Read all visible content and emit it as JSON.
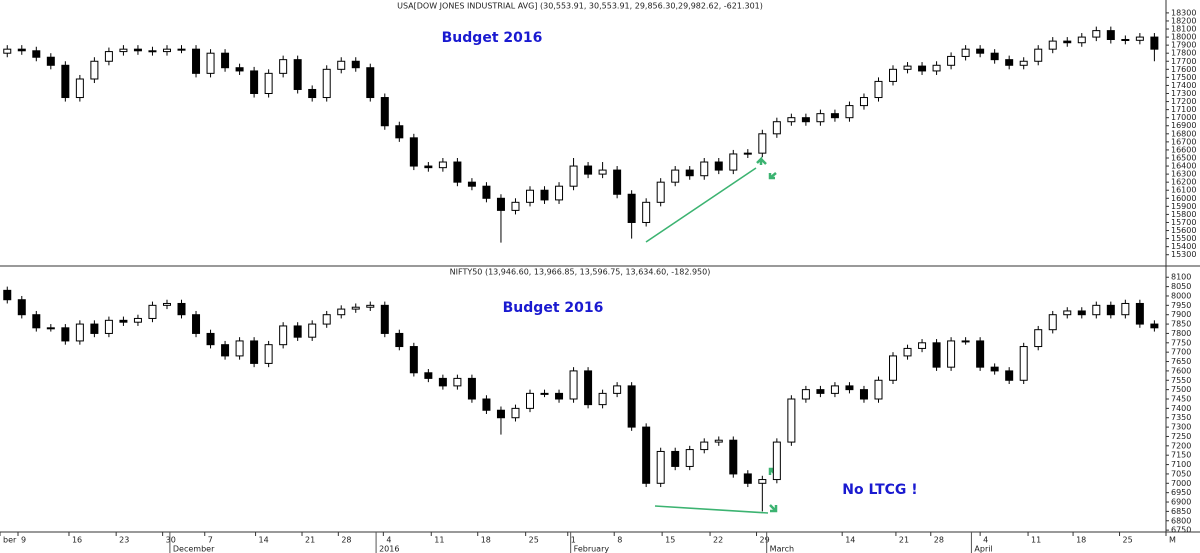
{
  "chart_data": [
    {
      "type": "candlestick",
      "title": "USA[DOW JONES INDUSTRIAL AVG] (30,553.91, 30,553.91, 29,856.30,29,982.62, -621.301)",
      "annotations": [
        "Budget 2016"
      ],
      "up_color": "#ffffff",
      "down_color": "#000000",
      "edge_color": "#000000",
      "xlim": [
        -0.5,
        79.8
      ],
      "ylim": [
        15160,
        18460
      ],
      "yticks": [
        15300,
        15400,
        15500,
        15600,
        15700,
        15800,
        15900,
        16000,
        16100,
        16200,
        16300,
        16400,
        16500,
        16600,
        16700,
        16800,
        16900,
        17000,
        17100,
        17200,
        17300,
        17400,
        17500,
        17600,
        17700,
        17800,
        17900,
        18000,
        18100,
        18200,
        18300
      ],
      "open": [
        17800,
        17850,
        17830,
        17750,
        17650,
        17250,
        17480,
        17700,
        17820,
        17850,
        17830,
        17820,
        17850,
        17850,
        17550,
        17800,
        17620,
        17580,
        17300,
        17550,
        17720,
        17350,
        17250,
        17600,
        17700,
        17620,
        17250,
        16900,
        16750,
        16400,
        16380,
        16450,
        16200,
        16150,
        16000,
        15850,
        15950,
        16100,
        15980,
        16150,
        16400,
        16300,
        16350,
        16050,
        15700,
        15950,
        16200,
        16350,
        16280,
        16450,
        16350,
        16550,
        16560,
        16800,
        16950,
        17000,
        16950,
        17050,
        17000,
        17150,
        17250,
        17450,
        17600,
        17640,
        17580,
        17650,
        17760,
        17850,
        17800,
        17720,
        17650,
        17700,
        17850,
        17950,
        17930,
        18000,
        18080,
        17970,
        17960,
        18000
      ],
      "high": [
        17900,
        17900,
        17880,
        17800,
        17700,
        17530,
        17750,
        17870,
        17900,
        17900,
        17880,
        17900,
        17900,
        17900,
        17850,
        17850,
        17670,
        17630,
        17600,
        17770,
        17770,
        17400,
        17650,
        17750,
        17750,
        17670,
        17300,
        16950,
        16800,
        16450,
        16500,
        16500,
        16250,
        16200,
        16050,
        16000,
        16150,
        16150,
        16200,
        16500,
        16450,
        16450,
        16400,
        16100,
        16000,
        16250,
        16400,
        16400,
        16500,
        16500,
        16600,
        16610,
        16850,
        17000,
        17050,
        17050,
        17100,
        17100,
        17200,
        17300,
        17500,
        17650,
        17690,
        17690,
        17700,
        17810,
        17900,
        17900,
        17850,
        17770,
        17750,
        17900,
        18000,
        18000,
        18050,
        18130,
        18130,
        18020,
        18050,
        18050
      ],
      "low": [
        17750,
        17780,
        17700,
        17600,
        17200,
        17200,
        17430,
        17650,
        17770,
        17780,
        17770,
        17770,
        17800,
        17500,
        17500,
        17570,
        17530,
        17250,
        17250,
        17500,
        17300,
        17200,
        17200,
        17550,
        17570,
        17200,
        16850,
        16700,
        16350,
        16330,
        16330,
        16150,
        16100,
        15950,
        15450,
        15800,
        15900,
        15930,
        15930,
        16100,
        16250,
        16250,
        16000,
        15500,
        15650,
        15900,
        16150,
        16230,
        16230,
        16300,
        16300,
        16500,
        16510,
        16750,
        16900,
        16900,
        16900,
        16950,
        16950,
        17100,
        17200,
        17400,
        17550,
        17530,
        17530,
        17600,
        17710,
        17750,
        17670,
        17600,
        17600,
        17650,
        17800,
        17880,
        17880,
        17950,
        17920,
        17910,
        17910,
        17700
      ],
      "close": [
        17850,
        17830,
        17750,
        17650,
        17250,
        17480,
        17700,
        17820,
        17850,
        17830,
        17820,
        17850,
        17850,
        17550,
        17800,
        17620,
        17580,
        17300,
        17550,
        17720,
        17350,
        17250,
        17600,
        17700,
        17620,
        17250,
        16900,
        16750,
        16400,
        16380,
        16450,
        16200,
        16150,
        16000,
        15850,
        15950,
        16100,
        15980,
        16150,
        16400,
        16300,
        16350,
        16050,
        15700,
        15950,
        16200,
        16350,
        16280,
        16450,
        16350,
        16550,
        16560,
        16800,
        16950,
        17000,
        16950,
        17050,
        17000,
        17150,
        17250,
        17450,
        17600,
        17640,
        17580,
        17650,
        17760,
        17850,
        17800,
        17720,
        17650,
        17700,
        17850,
        17950,
        17930,
        18000,
        18080,
        17970,
        17960,
        18000,
        17850
      ]
    },
    {
      "type": "candlestick",
      "title": "NIFTY50 (13,946.60, 13,966.85, 13,596.75, 13,634.60, -182.950)",
      "annotations": [
        "Budget 2016",
        "No LTCG !"
      ],
      "up_color": "#ffffff",
      "down_color": "#000000",
      "edge_color": "#000000",
      "xlim": [
        -0.5,
        79.8
      ],
      "ylim": [
        6740,
        8160
      ],
      "yticks": [
        6750,
        6800,
        6850,
        6900,
        6950,
        7000,
        7050,
        7100,
        7150,
        7200,
        7250,
        7300,
        7350,
        7400,
        7450,
        7500,
        7550,
        7600,
        7650,
        7700,
        7750,
        7800,
        7850,
        7900,
        7950,
        8000,
        8050,
        8100
      ],
      "xticks": [
        {
          "value": -0.5,
          "label": "ber"
        },
        {
          "value": 0.74,
          "label": "9"
        },
        {
          "value": 4.25,
          "label": "16"
        },
        {
          "value": 7.5,
          "label": "23"
        },
        {
          "value": 10.7,
          "label": "30"
        },
        {
          "value": 13.6,
          "label": "7"
        },
        {
          "value": 17.1,
          "label": "14"
        },
        {
          "value": 20.3,
          "label": "21"
        },
        {
          "value": 22.8,
          "label": "28"
        },
        {
          "value": 25.9,
          "label": "4"
        },
        {
          "value": 29.2,
          "label": "11"
        },
        {
          "value": 32.4,
          "label": "18"
        },
        {
          "value": 35.7,
          "label": "25"
        },
        {
          "value": 38.6,
          "label": "1"
        },
        {
          "value": 41.8,
          "label": "8"
        },
        {
          "value": 45.1,
          "label": "15"
        },
        {
          "value": 48.4,
          "label": "22"
        },
        {
          "value": 51.6,
          "label": "29"
        },
        {
          "value": 57.5,
          "label": "14"
        },
        {
          "value": 61.2,
          "label": "21"
        },
        {
          "value": 63.6,
          "label": "28"
        },
        {
          "value": 67.0,
          "label": "4"
        },
        {
          "value": 70.3,
          "label": "11"
        },
        {
          "value": 73.4,
          "label": "18"
        },
        {
          "value": 76.6,
          "label": "25"
        },
        {
          "value": 79.8,
          "label": "M"
        }
      ],
      "xmonths": [
        {
          "value": 11.2,
          "label": "December"
        },
        {
          "value": 25.4,
          "label": "2016"
        },
        {
          "value": 38.8,
          "label": "February"
        },
        {
          "value": 52.3,
          "label": "March"
        },
        {
          "value": 66.4,
          "label": "April"
        }
      ],
      "open": [
        8030,
        7980,
        7900,
        7830,
        7830,
        7760,
        7850,
        7800,
        7870,
        7860,
        7880,
        7950,
        7960,
        7900,
        7800,
        7740,
        7680,
        7760,
        7640,
        7740,
        7840,
        7780,
        7850,
        7900,
        7930,
        7940,
        7950,
        7800,
        7730,
        7590,
        7560,
        7520,
        7560,
        7450,
        7390,
        7350,
        7400,
        7480,
        7480,
        7450,
        7600,
        7420,
        7480,
        7520,
        7300,
        7000,
        7170,
        7090,
        7180,
        7220,
        7230,
        7050,
        7000,
        7020,
        7220,
        7450,
        7500,
        7480,
        7520,
        7500,
        7450,
        7550,
        7680,
        7720,
        7750,
        7620,
        7760,
        7760,
        7620,
        7600,
        7550,
        7730,
        7820,
        7900,
        7920,
        7900,
        7950,
        7900,
        7960,
        7850
      ],
      "high": [
        8050,
        8000,
        7920,
        7850,
        7850,
        7870,
        7870,
        7890,
        7890,
        7900,
        7970,
        7980,
        7980,
        7920,
        7820,
        7760,
        7780,
        7780,
        7760,
        7860,
        7860,
        7870,
        7920,
        7950,
        7960,
        7970,
        7970,
        7820,
        7750,
        7610,
        7580,
        7580,
        7580,
        7470,
        7410,
        7420,
        7500,
        7500,
        7500,
        7620,
        7620,
        7500,
        7540,
        7540,
        7320,
        7190,
        7190,
        7200,
        7240,
        7250,
        7250,
        7070,
        7040,
        7240,
        7470,
        7520,
        7520,
        7540,
        7540,
        7520,
        7570,
        7700,
        7740,
        7770,
        7770,
        7780,
        7780,
        7780,
        7640,
        7620,
        7750,
        7840,
        7920,
        7940,
        7940,
        7970,
        7970,
        7980,
        7980,
        7870
      ],
      "low": [
        7960,
        7880,
        7810,
        7810,
        7740,
        7740,
        7780,
        7780,
        7840,
        7840,
        7860,
        7930,
        7880,
        7780,
        7720,
        7660,
        7660,
        7620,
        7620,
        7720,
        7760,
        7760,
        7830,
        7880,
        7910,
        7920,
        7780,
        7710,
        7570,
        7540,
        7500,
        7500,
        7430,
        7370,
        7260,
        7330,
        7380,
        7460,
        7430,
        7430,
        7400,
        7400,
        7460,
        7280,
        6980,
        6980,
        7070,
        7070,
        7160,
        7200,
        7030,
        6980,
        6850,
        7000,
        7200,
        7430,
        7460,
        7460,
        7480,
        7430,
        7430,
        7530,
        7660,
        7700,
        7600,
        7600,
        7740,
        7600,
        7580,
        7530,
        7530,
        7710,
        7800,
        7880,
        7880,
        7880,
        7880,
        7880,
        7830,
        7810
      ],
      "close": [
        7980,
        7900,
        7830,
        7830,
        7760,
        7850,
        7800,
        7870,
        7860,
        7880,
        7950,
        7960,
        7900,
        7800,
        7740,
        7680,
        7760,
        7640,
        7740,
        7840,
        7780,
        7850,
        7900,
        7930,
        7940,
        7950,
        7800,
        7730,
        7590,
        7560,
        7520,
        7560,
        7450,
        7390,
        7350,
        7400,
        7480,
        7480,
        7450,
        7600,
        7420,
        7480,
        7520,
        7300,
        7000,
        7170,
        7090,
        7180,
        7220,
        7230,
        7050,
        7000,
        7020,
        7220,
        7450,
        7500,
        7480,
        7520,
        7500,
        7450,
        7550,
        7680,
        7720,
        7750,
        7620,
        7760,
        7760,
        7620,
        7600,
        7550,
        7730,
        7820,
        7900,
        7920,
        7900,
        7950,
        7900,
        7960,
        7850,
        7830
      ]
    }
  ]
}
